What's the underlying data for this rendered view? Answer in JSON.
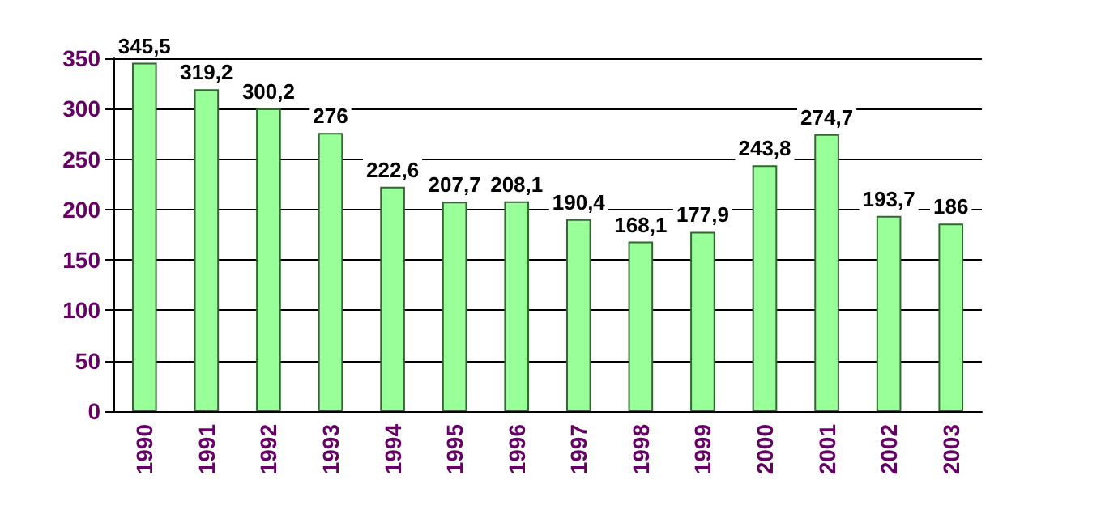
{
  "chart_data": {
    "type": "bar",
    "categories": [
      "1990",
      "1991",
      "1992",
      "1993",
      "1994",
      "1995",
      "1996",
      "1997",
      "1998",
      "1999",
      "2000",
      "2001",
      "2002",
      "2003"
    ],
    "values": [
      345.5,
      319.2,
      300.2,
      276,
      222.6,
      207.7,
      208.1,
      190.4,
      168.1,
      177.9,
      243.8,
      274.7,
      193.7,
      186
    ],
    "value_labels": [
      "345,5",
      "319,2",
      "300,2",
      "276",
      "222,6",
      "207,7",
      "208,1",
      "190,4",
      "168,1",
      "177,9",
      "243,8",
      "274,7",
      "193,7",
      "186"
    ],
    "color": "#99ff99",
    "ylim": [
      0,
      350
    ],
    "yticks": [
      0,
      50,
      100,
      150,
      200,
      250,
      300,
      350
    ],
    "grid": "y"
  }
}
